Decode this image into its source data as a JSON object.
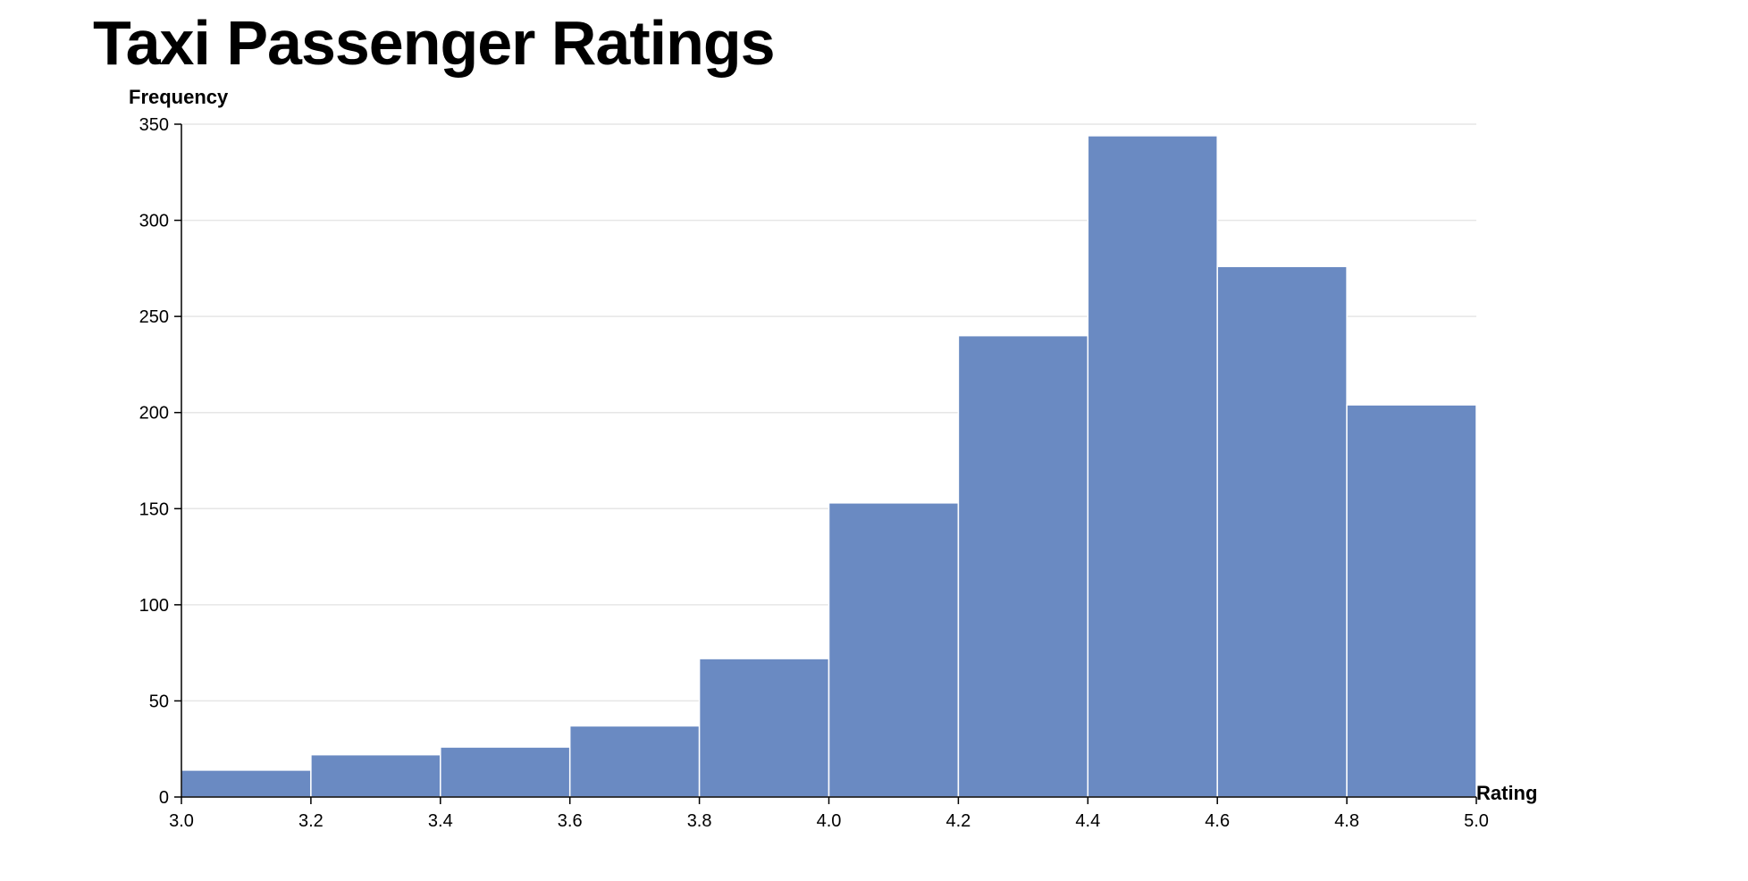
{
  "chart_data": {
    "type": "bar",
    "title": "Taxi Passenger Ratings",
    "xlabel": "Rating",
    "ylabel": "Frequency",
    "bins": [
      {
        "x0": 3.0,
        "x1": 3.2,
        "value": 14
      },
      {
        "x0": 3.2,
        "x1": 3.4,
        "value": 22
      },
      {
        "x0": 3.4,
        "x1": 3.6,
        "value": 26
      },
      {
        "x0": 3.6,
        "x1": 3.8,
        "value": 37
      },
      {
        "x0": 3.8,
        "x1": 4.0,
        "value": 72
      },
      {
        "x0": 4.0,
        "x1": 4.2,
        "value": 153
      },
      {
        "x0": 4.2,
        "x1": 4.4,
        "value": 240
      },
      {
        "x0": 4.4,
        "x1": 4.6,
        "value": 344
      },
      {
        "x0": 4.6,
        "x1": 4.8,
        "value": 276
      },
      {
        "x0": 4.8,
        "x1": 5.0,
        "value": 204
      }
    ],
    "x_ticks": [
      "3.0",
      "3.2",
      "3.4",
      "3.6",
      "3.8",
      "4.0",
      "4.2",
      "4.4",
      "4.6",
      "4.8",
      "5.0"
    ],
    "y_ticks": [
      "0",
      "50",
      "100",
      "150",
      "200",
      "250",
      "300",
      "350"
    ],
    "xlim": [
      3.0,
      5.0
    ],
    "ylim": [
      0,
      350
    ],
    "grid": true,
    "bar_color": "#6a8ac2",
    "bar_edge_color": "#ffffff",
    "grid_color": "#e6e6e6",
    "axis_color": "#000000"
  }
}
